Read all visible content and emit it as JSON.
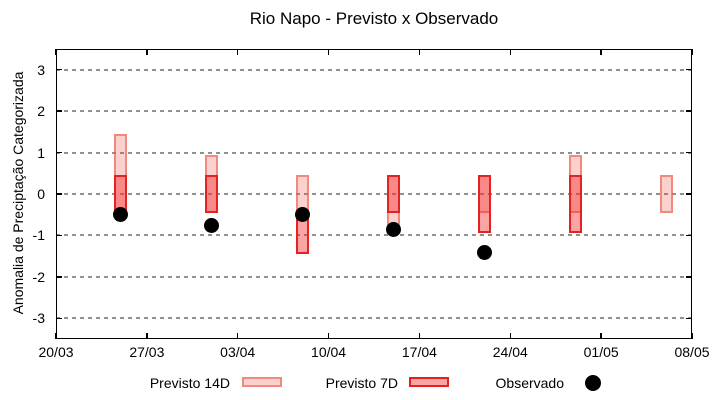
{
  "chart_data": {
    "type": "interval-bar",
    "title": "Rio Napo - Previsto x Observado",
    "ylabel": "Anomalia de Preciptação Categorizada",
    "xlabel": "",
    "x_tick_labels": [
      "20/03",
      "27/03",
      "03/04",
      "10/04",
      "17/04",
      "24/04",
      "01/05",
      "08/05"
    ],
    "x_tick_days": [
      0,
      7,
      14,
      21,
      28,
      35,
      42,
      49
    ],
    "yticks": [
      -3,
      -2,
      -1,
      0,
      1,
      2,
      3
    ],
    "ylim": [
      -3.5,
      3.5
    ],
    "grid": "horizontal-dashed",
    "legend_position": "bottom",
    "series": [
      {
        "name": "Previsto 14D",
        "type": "range-bar",
        "fill": "rgba(240,70,60,0.25)",
        "border": "rgba(233,90,78,0.6)"
      },
      {
        "name": "Previsto 7D",
        "type": "range-bar",
        "fill": "rgba(246,38,38,0.42)",
        "border": "#e42222"
      },
      {
        "name": "Observado",
        "type": "point",
        "color": "#000000"
      }
    ],
    "points": [
      {
        "date": "25/03",
        "day": 5,
        "previsto_14d": [
          -0.45,
          1.45
        ],
        "previsto_7d": [
          -0.45,
          0.45
        ],
        "observado": -0.5
      },
      {
        "date": "01/04",
        "day": 12,
        "previsto_14d": [
          -0.45,
          0.95
        ],
        "previsto_7d": [
          -0.45,
          0.45
        ],
        "observado": -0.75
      },
      {
        "date": "08/04",
        "day": 19,
        "previsto_14d": [
          -0.45,
          0.45
        ],
        "previsto_7d": [
          -1.45,
          -0.45
        ],
        "observado": -0.5
      },
      {
        "date": "15/04",
        "day": 26,
        "previsto_14d": [
          -0.95,
          0.45
        ],
        "previsto_7d": [
          -0.45,
          0.45
        ],
        "observado": -0.85
      },
      {
        "date": "22/04",
        "day": 33,
        "previsto_14d": [
          -0.45,
          0.45
        ],
        "previsto_7d": [
          -0.95,
          0.45
        ],
        "observado": -1.4
      },
      {
        "date": "29/04",
        "day": 40,
        "previsto_14d": [
          -0.45,
          0.95
        ],
        "previsto_7d": [
          -0.95,
          0.45
        ],
        "observado": null
      },
      {
        "date": "06/05",
        "day": 47,
        "previsto_14d": [
          -0.45,
          0.45
        ],
        "previsto_7d": null,
        "observado": null
      }
    ],
    "colors": {
      "grid": "#909090",
      "axis": "#000000",
      "background": "#ffffff"
    }
  }
}
